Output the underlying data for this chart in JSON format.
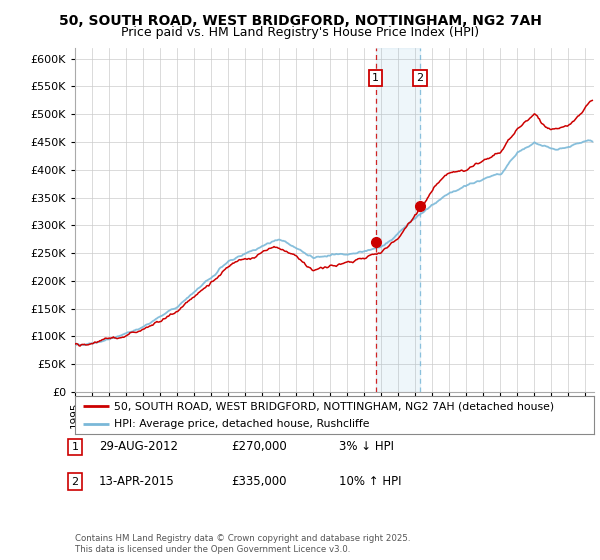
{
  "title_line1": "50, SOUTH ROAD, WEST BRIDGFORD, NOTTINGHAM, NG2 7AH",
  "title_line2": "Price paid vs. HM Land Registry's House Price Index (HPI)",
  "ylabel_ticks": [
    "£0",
    "£50K",
    "£100K",
    "£150K",
    "£200K",
    "£250K",
    "£300K",
    "£350K",
    "£400K",
    "£450K",
    "£500K",
    "£550K",
    "£600K"
  ],
  "ytick_values": [
    0,
    50000,
    100000,
    150000,
    200000,
    250000,
    300000,
    350000,
    400000,
    450000,
    500000,
    550000,
    600000
  ],
  "xlim_start": 1995.0,
  "xlim_end": 2025.5,
  "ylim_min": 0,
  "ylim_max": 620000,
  "hpi_color": "#7ab8d8",
  "price_color": "#cc0000",
  "transaction1_date": 2012.66,
  "transaction1_price": 270000,
  "transaction2_date": 2015.28,
  "transaction2_price": 335000,
  "legend_line1": "50, SOUTH ROAD, WEST BRIDGFORD, NOTTINGHAM, NG2 7AH (detached house)",
  "legend_line2": "HPI: Average price, detached house, Rushcliffe",
  "note1_label": "1",
  "note1_date": "29-AUG-2012",
  "note1_price": "£270,000",
  "note1_hpi": "3% ↓ HPI",
  "note2_label": "2",
  "note2_date": "13-APR-2015",
  "note2_price": "£335,000",
  "note2_hpi": "10% ↑ HPI",
  "footer": "Contains HM Land Registry data © Crown copyright and database right 2025.\nThis data is licensed under the Open Government Licence v3.0.",
  "background_color": "#ffffff",
  "grid_color": "#cccccc"
}
